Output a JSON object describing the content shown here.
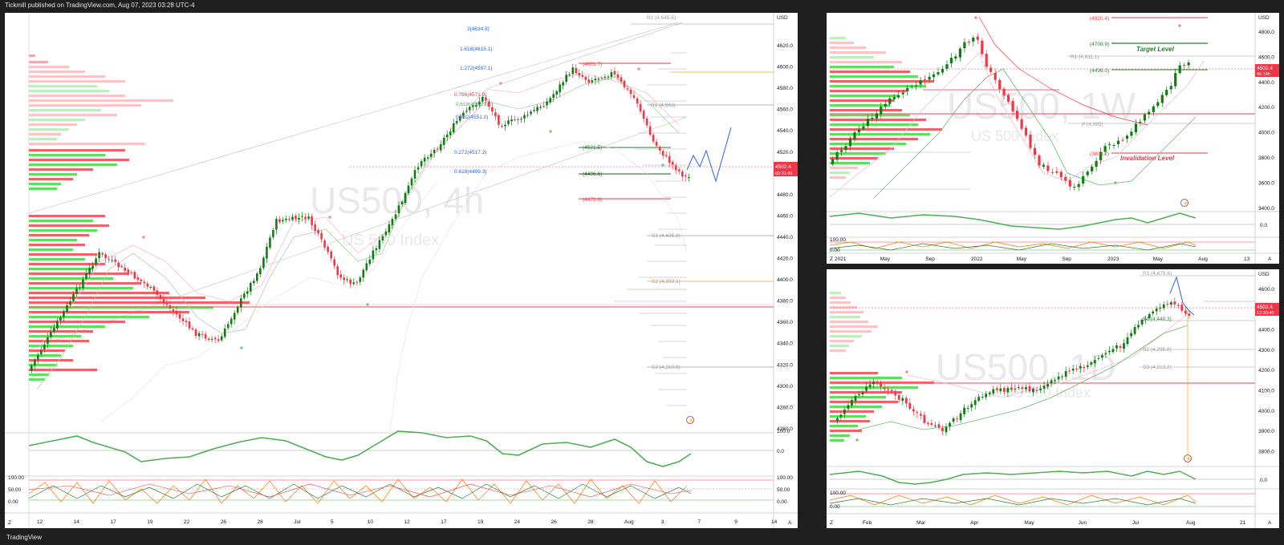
{
  "header": {
    "published": "Tickmill published on TradingView.com, Aug 07, 2023 03:28 UTC-4"
  },
  "footer": {
    "brand": "TradingView"
  },
  "colors": {
    "up": "#089981",
    "upCandle": "#0f7d12",
    "down": "#f23645",
    "bg": "#ffffff",
    "blue": "#2962ff",
    "osc_green": "#4caf50",
    "osc_red": "#f05350",
    "hvn_green": "#5ee05e",
    "hvn_red": "#f4606a"
  },
  "charts": {
    "h4": {
      "symbol": "US500, 4h",
      "subtitle": "US 500 Index",
      "currency": "USD",
      "price_ticks": [
        "4620.0",
        "4600.0",
        "4580.0",
        "4560.0",
        "4540.0",
        "4520.0",
        "4500.0",
        "4480.0",
        "4460.0",
        "4440.0",
        "4420.0",
        "4400.0",
        "4380.0",
        "4360.0",
        "4340.0",
        "4320.0",
        "4300.0",
        "4280.0",
        "4260.0"
      ],
      "time_ticks": [
        "12",
        "14",
        "17",
        "19",
        "22",
        "26",
        "28",
        "Jul",
        "5",
        "10",
        "12",
        "17",
        "19",
        "24",
        "26",
        "28",
        "Aug",
        "3",
        "7",
        "9",
        "14"
      ],
      "price_tag": "4502.4",
      "price_tag_sub": "02:31:45",
      "levels": [
        "R2 (4,645.5)",
        "R1 (4,563)",
        "S1 (4,436.8)",
        "S2 (4,393.1)",
        "S3 (4,310.8)",
        "(4601.7)",
        "(4521.5)",
        "(4496.6)",
        "(4472.6)"
      ],
      "fib_levels": [
        "2(4634.9)",
        "1.618(4615.1)",
        "1.272(4597.1)",
        "0.786(4571.9)",
        "0.618(4563.1)",
        "0.382(4551.0)",
        "0.272(4517.2)",
        "0.618(4499.3)"
      ],
      "osc1_ticks": [
        "100.0",
        "0.0"
      ],
      "osc2_ticks": [
        "100.00",
        "50.00",
        "0.00"
      ]
    },
    "w1": {
      "symbol": "US500, 1W",
      "subtitle": "US 500 Index",
      "currency": "USD",
      "price_ticks": [
        "4800.0",
        "4600.0",
        "4400.0",
        "4200.0",
        "4000.0",
        "3800.0",
        "3600.0",
        "3400.0"
      ],
      "time_ticks": [
        "2021",
        "May",
        "Sep",
        "2022",
        "May",
        "Sep",
        "2023",
        "May",
        "Aug",
        "13"
      ],
      "price_tag": "4502.4",
      "price_tag_sub": "4d 14h",
      "levels": [
        "(4920.4)",
        "(4708.9)",
        "R1 (4,611.1)",
        "(4496.0)",
        "P (4,095)",
        "(3808.2)"
      ],
      "annotations": [
        "Target Level",
        "Invalidation Level"
      ],
      "osc1_ticks": [
        "0.0"
      ],
      "osc2_ticks": [
        "100.00",
        "0.00"
      ]
    },
    "d1": {
      "symbol": "US500, 1D",
      "subtitle": "US 500 Index",
      "currency": "USD",
      "price_ticks": [
        "4600.0",
        "4500.0",
        "4400.0",
        "4300.0",
        "4200.0",
        "4100.0",
        "4000.0",
        "3900.0",
        "3800.0"
      ],
      "time_ticks": [
        "Feb",
        "Mar",
        "Apr",
        "May",
        "Jun",
        "Jul",
        "Aug",
        "21"
      ],
      "price_tag": "4502.4",
      "price_tag_sub": "12:30:45",
      "levels": [
        "R1 (4,679.6)",
        "S1 (4,440.3)",
        "S2 (4,295.8)",
        "S3 (4,213.2)"
      ],
      "osc1_ticks": [
        "0.0"
      ],
      "osc2_ticks": [
        "100.00",
        "0.00"
      ]
    }
  }
}
